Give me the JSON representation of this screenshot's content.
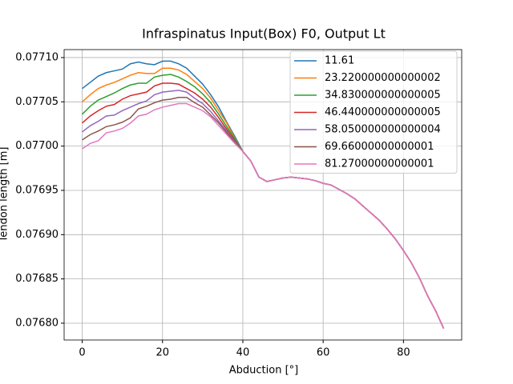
{
  "chart_data": {
    "type": "line",
    "title": "Infraspinatus Input(Box) F0, Output Lt",
    "xlabel": "Abduction [°]",
    "ylabel": "Tendon length [m]",
    "x": [
      0,
      2,
      4,
      6,
      8,
      10,
      12,
      14,
      16,
      18,
      20,
      22,
      24,
      26,
      28,
      30,
      32,
      34,
      36,
      38,
      40,
      42,
      44,
      46,
      48,
      50,
      52,
      54,
      56,
      58,
      60,
      62,
      64,
      66,
      68,
      70,
      72,
      74,
      76,
      78,
      80,
      82,
      84,
      86,
      88,
      90
    ],
    "xlim": [
      -4.5,
      94.5
    ],
    "xticks": [
      0,
      20,
      40,
      60,
      80
    ],
    "ylim": [
      0.076781,
      0.077109
    ],
    "yticks": [
      {
        "value": 0.0768,
        "label": "0.07680"
      },
      {
        "value": 0.07685,
        "label": "0.07685"
      },
      {
        "value": 0.0769,
        "label": "0.07690"
      },
      {
        "value": 0.07695,
        "label": "0.07695"
      },
      {
        "value": 0.077,
        "label": "0.07700"
      },
      {
        "value": 0.07705,
        "label": "0.07705"
      },
      {
        "value": 0.0771,
        "label": "0.07710"
      }
    ],
    "grid": true,
    "legend": "upper right",
    "series": [
      {
        "name": "11.61",
        "color": "#1f77b4",
        "values": [
          0.077065,
          0.077072,
          0.077079,
          0.077083,
          0.077085,
          0.077087,
          0.077093,
          0.077095,
          0.077093,
          0.077092,
          0.077096,
          0.077096,
          0.077093,
          0.077088,
          0.077079,
          0.07707,
          0.077058,
          0.077044,
          0.077027,
          0.077011,
          0.076994,
          0.076983,
          0.076965,
          0.07696,
          0.076962,
          0.076964,
          0.076965,
          0.076964,
          0.076963,
          0.076961,
          0.076958,
          0.076956,
          0.076951,
          0.076946,
          0.07694,
          0.076932,
          0.076924,
          0.076916,
          0.076906,
          0.076895,
          0.076882,
          0.076868,
          0.076851,
          0.076831,
          0.076814,
          0.076794
        ]
      },
      {
        "name": "23.220000000000002",
        "color": "#ff7f0e",
        "values": [
          0.07705,
          0.077058,
          0.077065,
          0.077069,
          0.077072,
          0.077076,
          0.07708,
          0.077083,
          0.077082,
          0.077082,
          0.077088,
          0.077088,
          0.077086,
          0.077081,
          0.077073,
          0.077065,
          0.077054,
          0.07704,
          0.077026,
          0.077009,
          0.076994,
          0.076983,
          0.076965,
          0.07696,
          0.076962,
          0.076964,
          0.076965,
          0.076964,
          0.076963,
          0.076961,
          0.076958,
          0.076956,
          0.076951,
          0.076946,
          0.07694,
          0.076932,
          0.076924,
          0.076916,
          0.076906,
          0.076895,
          0.076882,
          0.076868,
          0.076851,
          0.076831,
          0.076814,
          0.076794
        ]
      },
      {
        "name": "34.830000000000005",
        "color": "#2ca02c",
        "values": [
          0.077036,
          0.077045,
          0.077052,
          0.077056,
          0.07706,
          0.077065,
          0.077069,
          0.077071,
          0.077071,
          0.077078,
          0.07708,
          0.077081,
          0.077078,
          0.077073,
          0.077067,
          0.077059,
          0.077049,
          0.077036,
          0.077022,
          0.077008,
          0.076994,
          0.076983,
          0.076965,
          0.07696,
          0.076962,
          0.076964,
          0.076965,
          0.076964,
          0.076963,
          0.076961,
          0.076958,
          0.076956,
          0.076951,
          0.076946,
          0.07694,
          0.076932,
          0.076924,
          0.076916,
          0.076906,
          0.076895,
          0.076882,
          0.076868,
          0.076851,
          0.076831,
          0.076814,
          0.076794
        ]
      },
      {
        "name": "46.440000000000005",
        "color": "#d62728",
        "values": [
          0.077026,
          0.077034,
          0.07704,
          0.077045,
          0.077047,
          0.077053,
          0.077057,
          0.077059,
          0.077061,
          0.077068,
          0.077071,
          0.077071,
          0.07707,
          0.077065,
          0.07706,
          0.077053,
          0.077044,
          0.077032,
          0.077019,
          0.077006,
          0.076994,
          0.076983,
          0.076965,
          0.07696,
          0.076962,
          0.076964,
          0.076965,
          0.076964,
          0.076963,
          0.076961,
          0.076958,
          0.076956,
          0.076951,
          0.076946,
          0.07694,
          0.076932,
          0.076924,
          0.076916,
          0.076906,
          0.076895,
          0.076882,
          0.076868,
          0.076851,
          0.076831,
          0.076814,
          0.076794
        ]
      },
      {
        "name": "58.050000000000004",
        "color": "#9467bd",
        "values": [
          0.077016,
          0.077023,
          0.077028,
          0.077034,
          0.077035,
          0.07704,
          0.077044,
          0.077048,
          0.077051,
          0.077058,
          0.077061,
          0.077062,
          0.077063,
          0.077061,
          0.077054,
          0.077048,
          0.077039,
          0.077028,
          0.077017,
          0.077005,
          0.076994,
          0.076983,
          0.076965,
          0.07696,
          0.076962,
          0.076964,
          0.076965,
          0.076964,
          0.076963,
          0.076961,
          0.076958,
          0.076956,
          0.076951,
          0.076946,
          0.07694,
          0.076932,
          0.076924,
          0.076916,
          0.076906,
          0.076895,
          0.076882,
          0.076868,
          0.076851,
          0.076831,
          0.076814,
          0.076794
        ]
      },
      {
        "name": "69.66000000000001",
        "color": "#8c564b",
        "values": [
          0.077007,
          0.077013,
          0.077017,
          0.077022,
          0.077024,
          0.077027,
          0.077032,
          0.077042,
          0.077045,
          0.077049,
          0.077052,
          0.077053,
          0.077055,
          0.077055,
          0.077049,
          0.077044,
          0.077035,
          0.077026,
          0.077015,
          0.077004,
          0.076994,
          0.076983,
          0.076965,
          0.07696,
          0.076962,
          0.076964,
          0.076965,
          0.076964,
          0.076963,
          0.076961,
          0.076958,
          0.076956,
          0.076951,
          0.076946,
          0.07694,
          0.076932,
          0.076924,
          0.076916,
          0.076906,
          0.076895,
          0.076882,
          0.076868,
          0.076851,
          0.076831,
          0.076814,
          0.076794
        ]
      },
      {
        "name": "81.27000000000001",
        "color": "#e377c2",
        "values": [
          0.076997,
          0.077003,
          0.077006,
          0.077015,
          0.077017,
          0.07702,
          0.077026,
          0.077034,
          0.077036,
          0.077041,
          0.077044,
          0.077046,
          0.077048,
          0.077048,
          0.077044,
          0.07704,
          0.077033,
          0.077023,
          0.077013,
          0.077003,
          0.076994,
          0.076983,
          0.076965,
          0.07696,
          0.076962,
          0.076964,
          0.076965,
          0.076964,
          0.076963,
          0.076961,
          0.076958,
          0.076956,
          0.076951,
          0.076946,
          0.07694,
          0.076932,
          0.076924,
          0.076916,
          0.076906,
          0.076895,
          0.076882,
          0.076868,
          0.076851,
          0.076831,
          0.076814,
          0.076794
        ]
      }
    ]
  }
}
